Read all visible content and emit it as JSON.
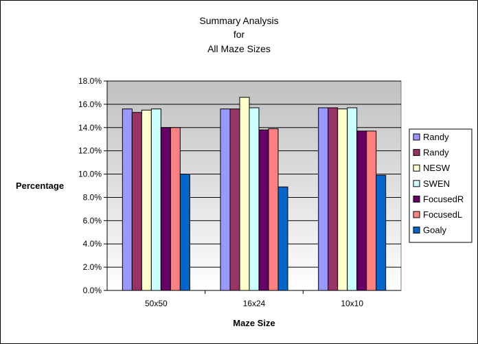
{
  "chart_data": {
    "type": "bar",
    "title_lines": [
      "Summary Analysis",
      "for",
      "All Maze Sizes"
    ],
    "xlabel": "Maze Size",
    "ylabel": "Percentage",
    "categories": [
      "50x50",
      "16x24",
      "10x10"
    ],
    "ylim": [
      0,
      18
    ],
    "ytick_step": 2,
    "ytick_labels": [
      "0.0%",
      "2.0%",
      "4.0%",
      "6.0%",
      "8.0%",
      "10.0%",
      "12.0%",
      "14.0%",
      "16.0%",
      "18.0%"
    ],
    "grid": true,
    "legend_position": "right",
    "series": [
      {
        "name": "Randy",
        "color": "#9999ff",
        "values": [
          15.6,
          15.6,
          15.7
        ]
      },
      {
        "name": "Randy",
        "color": "#993366",
        "values": [
          15.3,
          15.6,
          15.7
        ]
      },
      {
        "name": "NESW",
        "color": "#ffffcc",
        "values": [
          15.5,
          16.6,
          15.6
        ]
      },
      {
        "name": "SWEN",
        "color": "#ccffff",
        "values": [
          15.6,
          15.7,
          15.7
        ]
      },
      {
        "name": "FocusedR",
        "color": "#660066",
        "values": [
          14.0,
          13.8,
          13.7
        ]
      },
      {
        "name": "FocusedL",
        "color": "#ff8080",
        "values": [
          14.0,
          13.9,
          13.7
        ]
      },
      {
        "name": "Goaly",
        "color": "#0066cc",
        "values": [
          10.0,
          8.9,
          9.9
        ]
      }
    ]
  },
  "colors": {
    "plot_background": "#c0c0c0",
    "plot_background_light": "#ffffff",
    "border": "#000000"
  }
}
